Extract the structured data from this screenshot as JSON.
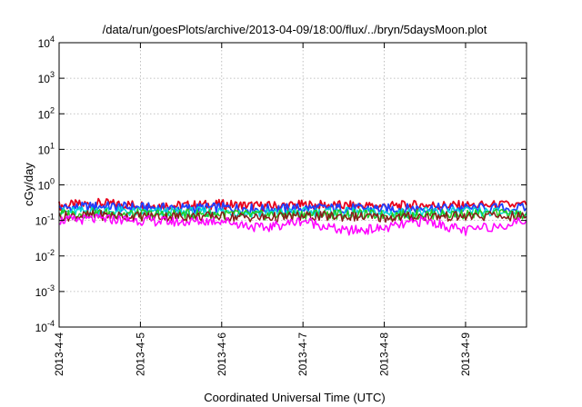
{
  "chart_data": {
    "type": "line",
    "title": "/data/run/goesPlots/archive/2013-04-09/18:00/flux/../bryn/5daysMoon.plot",
    "xlabel": "Coordinated Universal Time (UTC)",
    "ylabel": "cGy/day",
    "y_scale": "log",
    "ylim": [
      0.0001,
      10000
    ],
    "y_ticks": [
      {
        "base": "10",
        "exp": "-4",
        "value": 0.0001
      },
      {
        "base": "10",
        "exp": "-3",
        "value": 0.001
      },
      {
        "base": "10",
        "exp": "-2",
        "value": 0.01
      },
      {
        "base": "10",
        "exp": "-1",
        "value": 0.1
      },
      {
        "base": "10",
        "exp": "0",
        "value": 1
      },
      {
        "base": "10",
        "exp": "1",
        "value": 10
      },
      {
        "base": "10",
        "exp": "2",
        "value": 100
      },
      {
        "base": "10",
        "exp": "3",
        "value": 1000
      },
      {
        "base": "10",
        "exp": "4",
        "value": 10000
      }
    ],
    "xlim": [
      "2013-04-04 00:00",
      "2013-04-09 18:00"
    ],
    "x_ticks": [
      "2013-4-4",
      "2013-4-5",
      "2013-4-6",
      "2013-4-7",
      "2013-4-8",
      "2013-4-9"
    ],
    "grid": true,
    "series": [
      {
        "color": "#e8001c",
        "x": [
          "2013-04-04 00:00",
          "2013-04-04 12:00",
          "2013-04-05 00:00",
          "2013-04-05 12:00",
          "2013-04-06 00:00",
          "2013-04-06 12:00",
          "2013-04-07 00:00",
          "2013-04-07 12:00",
          "2013-04-08 00:00",
          "2013-04-08 12:00",
          "2013-04-09 00:00",
          "2013-04-09 18:00"
        ],
        "y": [
          0.26,
          0.3,
          0.27,
          0.26,
          0.28,
          0.25,
          0.27,
          0.26,
          0.25,
          0.27,
          0.26,
          0.27
        ]
      },
      {
        "color": "#1f3fff",
        "x": [
          "2013-04-04 00:00",
          "2013-04-04 12:00",
          "2013-04-05 00:00",
          "2013-04-05 12:00",
          "2013-04-06 00:00",
          "2013-04-06 12:00",
          "2013-04-07 00:00",
          "2013-04-07 12:00",
          "2013-04-08 00:00",
          "2013-04-08 12:00",
          "2013-04-09 00:00",
          "2013-04-09 18:00"
        ],
        "y": [
          0.22,
          0.25,
          0.23,
          0.22,
          0.23,
          0.21,
          0.22,
          0.22,
          0.21,
          0.22,
          0.22,
          0.22
        ]
      },
      {
        "color": "#00d8d8",
        "x": [
          "2013-04-04 00:00",
          "2013-04-04 12:00",
          "2013-04-05 00:00",
          "2013-04-05 12:00",
          "2013-04-06 00:00",
          "2013-04-06 12:00",
          "2013-04-07 00:00",
          "2013-04-07 12:00",
          "2013-04-08 00:00",
          "2013-04-08 12:00",
          "2013-04-09 00:00",
          "2013-04-09 18:00"
        ],
        "y": [
          0.17,
          0.19,
          0.17,
          0.17,
          0.18,
          0.16,
          0.17,
          0.17,
          0.16,
          0.17,
          0.17,
          0.17
        ]
      },
      {
        "color": "#22cc22",
        "x": [
          "2013-04-04 00:00",
          "2013-04-04 12:00",
          "2013-04-05 00:00",
          "2013-04-05 12:00",
          "2013-04-06 00:00",
          "2013-04-06 12:00",
          "2013-04-07 00:00",
          "2013-04-07 12:00",
          "2013-04-08 00:00",
          "2013-04-08 12:00",
          "2013-04-09 00:00",
          "2013-04-09 18:00"
        ],
        "y": [
          0.15,
          0.16,
          0.15,
          0.15,
          0.15,
          0.14,
          0.15,
          0.15,
          0.14,
          0.15,
          0.15,
          0.15
        ]
      },
      {
        "color": "#8b1a1a",
        "x": [
          "2013-04-04 00:00",
          "2013-04-04 12:00",
          "2013-04-05 00:00",
          "2013-04-05 12:00",
          "2013-04-06 00:00",
          "2013-04-06 12:00",
          "2013-04-07 00:00",
          "2013-04-07 12:00",
          "2013-04-08 00:00",
          "2013-04-08 12:00",
          "2013-04-09 00:00",
          "2013-04-09 18:00"
        ],
        "y": [
          0.13,
          0.14,
          0.13,
          0.13,
          0.13,
          0.12,
          0.13,
          0.13,
          0.12,
          0.13,
          0.13,
          0.13
        ]
      },
      {
        "color": "#ff00ff",
        "x": [
          "2013-04-04 00:00",
          "2013-04-04 12:00",
          "2013-04-05 00:00",
          "2013-04-05 12:00",
          "2013-04-06 00:00",
          "2013-04-06 12:00",
          "2013-04-07 00:00",
          "2013-04-07 12:00",
          "2013-04-08 00:00",
          "2013-04-08 12:00",
          "2013-04-09 00:00",
          "2013-04-09 18:00"
        ],
        "y": [
          0.1,
          0.11,
          0.1,
          0.09,
          0.1,
          0.06,
          0.1,
          0.05,
          0.06,
          0.1,
          0.05,
          0.1
        ]
      }
    ]
  }
}
